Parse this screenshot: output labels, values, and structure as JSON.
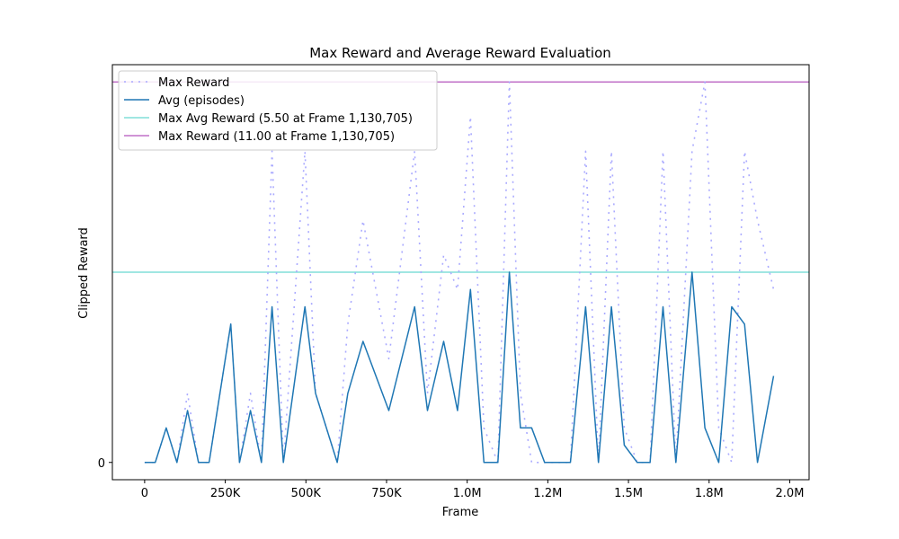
{
  "chart_data": {
    "type": "line",
    "title": "Max Reward and Average Reward Evaluation",
    "xlabel": "Frame",
    "ylabel": "Clipped Reward",
    "xlim": [
      -100000,
      2060000
    ],
    "ylim": [
      -0.5,
      11.5
    ],
    "xticks": [
      0,
      250000,
      500000,
      750000,
      1000000,
      1250000,
      1500000,
      1750000,
      2000000
    ],
    "xtick_labels": [
      "0",
      "250K",
      "500K",
      "750K",
      "1.0M",
      "1.2M",
      "1.5M",
      "1.8M",
      "2.0M"
    ],
    "yticks": [
      0
    ],
    "ytick_labels": [
      "0"
    ],
    "grid": false,
    "legend_position": "upper-left",
    "series": [
      {
        "name": "Max Reward",
        "style": "dashed",
        "color": "#aaaaff",
        "x": [
          0,
          33000,
          67000,
          100000,
          133000,
          167000,
          200000,
          267000,
          294000,
          328000,
          362000,
          395000,
          430000,
          497000,
          530000,
          597000,
          630000,
          677000,
          757000,
          837000,
          877000,
          927000,
          970000,
          1010000,
          1052000,
          1095000,
          1130705,
          1165000,
          1200000,
          1240000,
          1320000,
          1367000,
          1407000,
          1447000,
          1487000,
          1527000,
          1567000,
          1607000,
          1647000,
          1697000,
          1737000,
          1780000,
          1820000,
          1860000,
          1900000,
          1950000
        ],
        "y": [
          0,
          0,
          1,
          0,
          2,
          0,
          0,
          4,
          0,
          2,
          0,
          9,
          0,
          9,
          2,
          0,
          4,
          7,
          3,
          9,
          2,
          6,
          5,
          10,
          1,
          0,
          11,
          2,
          0,
          0,
          0,
          9,
          0,
          9,
          1,
          0,
          0,
          9,
          0,
          9,
          11,
          1,
          0,
          9,
          7,
          5
        ]
      },
      {
        "name": "Avg (episodes)",
        "style": "solid",
        "color": "#1f77b4",
        "x": [
          0,
          33000,
          67000,
          100000,
          133000,
          167000,
          200000,
          267000,
          294000,
          328000,
          362000,
          395000,
          430000,
          497000,
          530000,
          597000,
          630000,
          677000,
          757000,
          837000,
          877000,
          927000,
          970000,
          1010000,
          1052000,
          1095000,
          1130705,
          1165000,
          1200000,
          1240000,
          1320000,
          1367000,
          1407000,
          1447000,
          1487000,
          1527000,
          1567000,
          1607000,
          1647000,
          1697000,
          1737000,
          1780000,
          1820000,
          1860000,
          1900000,
          1950000
        ],
        "y": [
          0,
          0,
          1,
          0,
          1.5,
          0,
          0,
          4,
          0,
          1.5,
          0,
          4.5,
          0,
          4.5,
          2,
          0,
          2,
          3.5,
          1.5,
          4.5,
          1.5,
          3.5,
          1.5,
          5,
          0,
          0,
          5.5,
          1,
          1,
          0,
          0,
          4.5,
          0,
          4.5,
          0.5,
          0,
          0,
          4.5,
          0,
          5.5,
          1,
          0,
          4.5,
          4,
          0,
          2.5
        ]
      }
    ],
    "reference_lines": [
      {
        "name": "Max Avg Reward (5.50 at Frame 1,130,705)",
        "y": 5.5,
        "color": "#80dfd8"
      },
      {
        "name": "Max Reward (11.00 at Frame 1,130,705)",
        "y": 11,
        "color": "#c071c8"
      }
    ]
  }
}
